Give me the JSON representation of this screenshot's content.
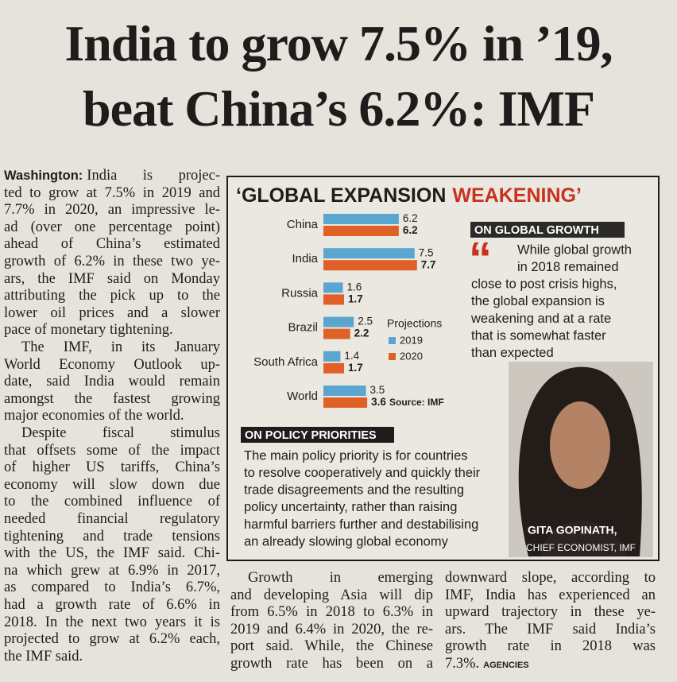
{
  "headline": [
    "India to grow 7.5% in ’19,",
    "beat China’s 6.2%: IMF"
  ],
  "article": {
    "dateline": "Washington:",
    "paragraphs": [
      [
        "India is projec-",
        "ted to grow at 7.5% in 2019 and",
        "7.7% in 2020, an impressive le-",
        "ad (over one percentage point)",
        "ahead of China’s estimated",
        "growth of 6.2% in these two ye-",
        "ars, the IMF said on Monday",
        "attributing the pick up to the",
        "lower oil prices and a slower",
        "pace of monetary tightening."
      ],
      [
        "The IMF, in its January",
        "World Economy Outlook up-",
        "date, said India would remain",
        "amongst the fastest growing",
        "major economies of the world."
      ],
      [
        "Despite fiscal stimulus",
        "that offsets some of the impact",
        "of higher US tariffs, China’s",
        "economy will slow down due",
        "to the combined influence of",
        "needed financial regulatory",
        "tightening and trade tensions",
        "with the US, the IMF said. Chi-",
        "na which grew at 6.9% in 2017,",
        "as compared to India’s 6.7%,",
        "had a growth rate of 6.6% in",
        "2018. In the next two years it is",
        "projected to grow at 6.2% each,",
        "the IMF said."
      ],
      [
        "Growth in emerging",
        "and developing Asia will dip",
        "from 6.5% in 2018 to 6.3% in",
        "2019 and 6.4% in 2020, the re-",
        "port said. While, the Chinese",
        "growth rate has been on a",
        "downward slope, according to",
        "IMF, India has experienced an",
        "upward trajectory in these ye-",
        "ars. The IMF said India’s",
        "growth rate in 2018 was",
        "7.3%."
      ]
    ],
    "credit": "AGENCIES"
  },
  "graphic": {
    "title": "‘GLOBAL EXPANSION",
    "title_highlight": "WEAKENING’",
    "chart_data": {
      "type": "bar",
      "orientation": "horizontal",
      "categories": [
        "China",
        "India",
        "Russia",
        "Brazil",
        "South Africa",
        "World"
      ],
      "series": [
        {
          "name": "2019",
          "color": "#5aa6d0",
          "values": [
            6.2,
            7.5,
            1.6,
            2.5,
            1.4,
            3.5
          ]
        },
        {
          "name": "2020",
          "color": "#df6128",
          "values": [
            6.2,
            7.7,
            1.7,
            2.2,
            1.7,
            3.6
          ]
        }
      ],
      "legend_title": "Projections",
      "source": "Source: IMF"
    },
    "quote": {
      "heading": "ON GLOBAL GROWTH",
      "lines": [
        "While global growth",
        "in 2018 remained",
        "close to post crisis highs,",
        "the global expansion is",
        "weakening and at a rate",
        "that is somewhat faster",
        "than expected"
      ]
    },
    "policy": {
      "heading": "ON POLICY PRIORITIES",
      "lines": [
        "The main policy priority is for countries",
        "to resolve cooperatively and quickly their",
        "trade disagreements and the resulting",
        "policy uncertainty, rather than raising",
        "harmful barriers further and destabilising",
        "an already slowing global economy"
      ]
    },
    "photo_caption": {
      "name": "GITA GOPINATH,",
      "role": "CHIEF ECONOMIST, IMF"
    }
  }
}
